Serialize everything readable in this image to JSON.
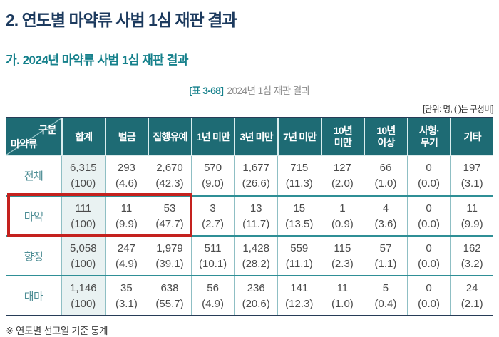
{
  "page": {
    "title": "2. 연도별 마약류 사범 1심 재판 결과",
    "subtitle": "가. 2024년 마약류 사범 1심 재판 결과",
    "caption_tag": "[표 3-68]",
    "caption_text": "2024년 1심 재판 결과",
    "unit_note": "[단위: 명, ( )는 구성비]",
    "footnote": "※ 연도별 선고일 기준 통계"
  },
  "colors": {
    "title_navy": "#1c3a5e",
    "accent_teal": "#15808b",
    "header_bg": "#1e6b74",
    "row_line_teal": "#2f8f96",
    "sum_column_bg": "#e9f2f2",
    "highlight_red": "#c4211e",
    "table_frame": "#273c57"
  },
  "table": {
    "corner": {
      "top": "구분",
      "bottom": "마약류"
    },
    "columns": [
      "합계",
      "벌금",
      "집행유예",
      "1년 미만",
      "3년 미만",
      "7년 미만",
      "10년\n미만",
      "10년\n이상",
      "사형·\n무기",
      "기타"
    ],
    "rows": [
      {
        "label": "전체",
        "highlight": false,
        "cells": [
          [
            "6,315",
            "(100)"
          ],
          [
            "293",
            "(4.6)"
          ],
          [
            "2,670",
            "(42.3)"
          ],
          [
            "570",
            "(9.0)"
          ],
          [
            "1,677",
            "(26.6)"
          ],
          [
            "715",
            "(11.3)"
          ],
          [
            "127",
            "(2.0)"
          ],
          [
            "66",
            "(1.0)"
          ],
          [
            "0",
            "(0.0)"
          ],
          [
            "197",
            "(3.1)"
          ]
        ]
      },
      {
        "label": "마약",
        "highlight": true,
        "cells": [
          [
            "111",
            "(100)"
          ],
          [
            "11",
            "(9.9)"
          ],
          [
            "53",
            "(47.7)"
          ],
          [
            "3",
            "(2.7)"
          ],
          [
            "13",
            "(11.7)"
          ],
          [
            "15",
            "(13.5)"
          ],
          [
            "1",
            "(0.9)"
          ],
          [
            "4",
            "(3.6)"
          ],
          [
            "0",
            "(0.0)"
          ],
          [
            "11",
            "(9.9)"
          ]
        ]
      },
      {
        "label": "향정",
        "highlight": false,
        "cells": [
          [
            "5,058",
            "(100)"
          ],
          [
            "247",
            "(4.9)"
          ],
          [
            "1,979",
            "(39.1)"
          ],
          [
            "511",
            "(10.1)"
          ],
          [
            "1,428",
            "(28.2)"
          ],
          [
            "559",
            "(11.1)"
          ],
          [
            "115",
            "(2.3)"
          ],
          [
            "57",
            "(1.1)"
          ],
          [
            "0",
            "(0.0)"
          ],
          [
            "162",
            "(3.2)"
          ]
        ]
      },
      {
        "label": "대마",
        "highlight": false,
        "cells": [
          [
            "1,146",
            "(100)"
          ],
          [
            "35",
            "(3.1)"
          ],
          [
            "638",
            "(55.7)"
          ],
          [
            "56",
            "(4.9)"
          ],
          [
            "236",
            "(20.6)"
          ],
          [
            "141",
            "(12.3)"
          ],
          [
            "11",
            "(1.0)"
          ],
          [
            "5",
            "(0.4)"
          ],
          [
            "0",
            "(0.0)"
          ],
          [
            "24",
            "(2.1)"
          ]
        ]
      }
    ]
  }
}
